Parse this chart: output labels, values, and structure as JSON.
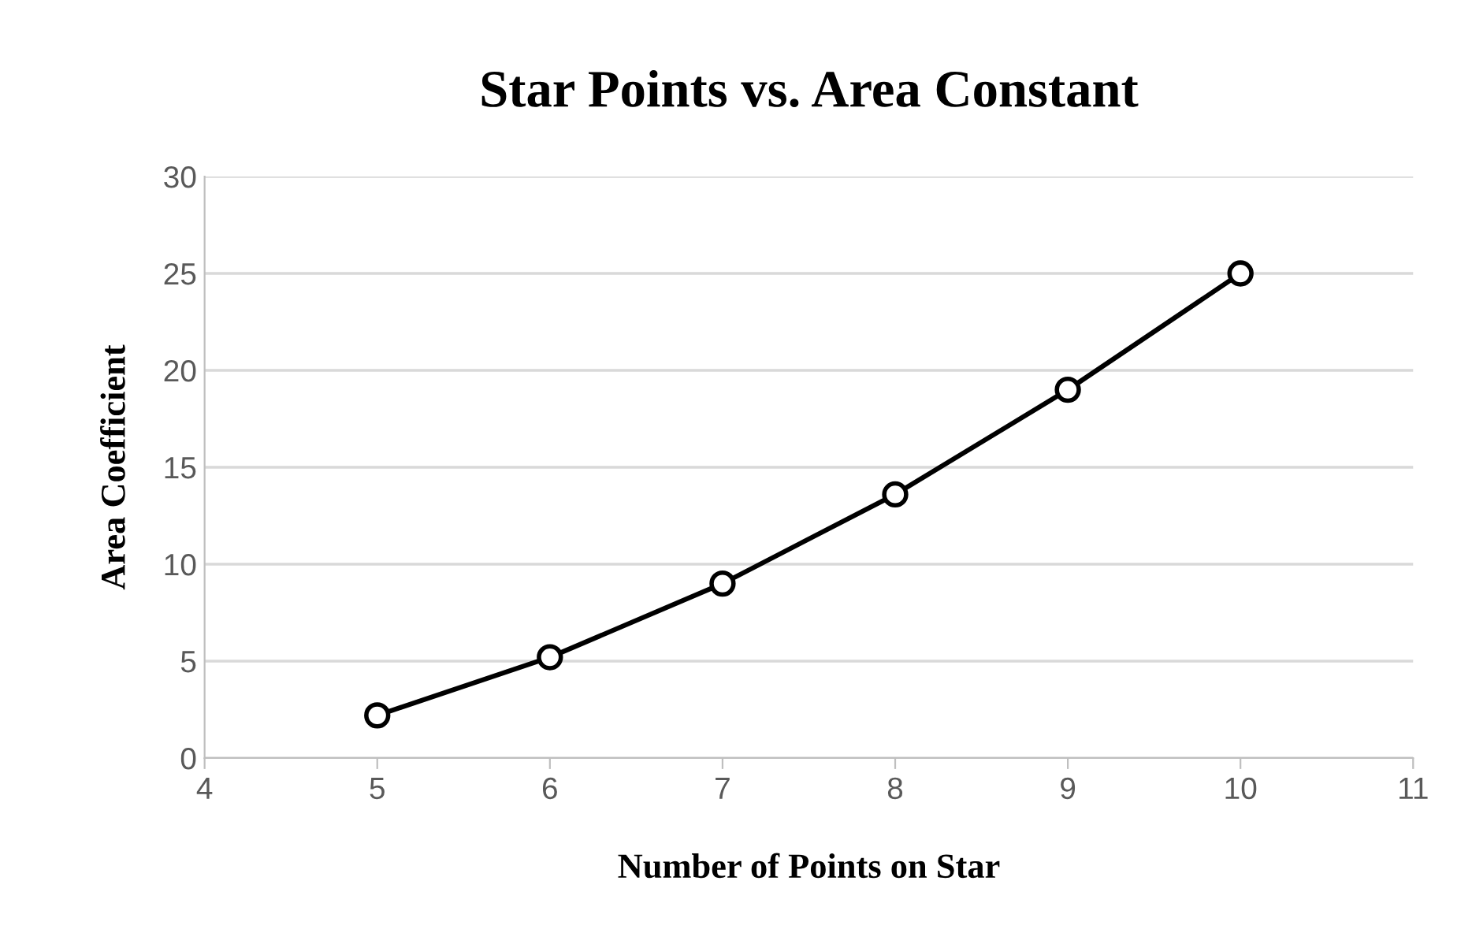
{
  "chart_data": {
    "type": "line",
    "title": "Star Points vs. Area Constant",
    "xlabel": "Number of Points on Star",
    "ylabel": "Area Coefficient",
    "x": [
      5,
      6,
      7,
      8,
      9,
      10
    ],
    "series": [
      {
        "color": "#000000",
        "values": [
          2.2,
          5.2,
          9.0,
          13.6,
          19.0,
          25.0
        ]
      }
    ],
    "xlim": [
      4,
      11
    ],
    "xticks": [
      4,
      5,
      6,
      7,
      8,
      9,
      10,
      11
    ],
    "ylim": [
      0,
      30
    ],
    "yticks": [
      0,
      5,
      10,
      15,
      20,
      25,
      30
    ],
    "grid": "y",
    "marker": "circle",
    "line_style": "solid",
    "legend": false
  }
}
